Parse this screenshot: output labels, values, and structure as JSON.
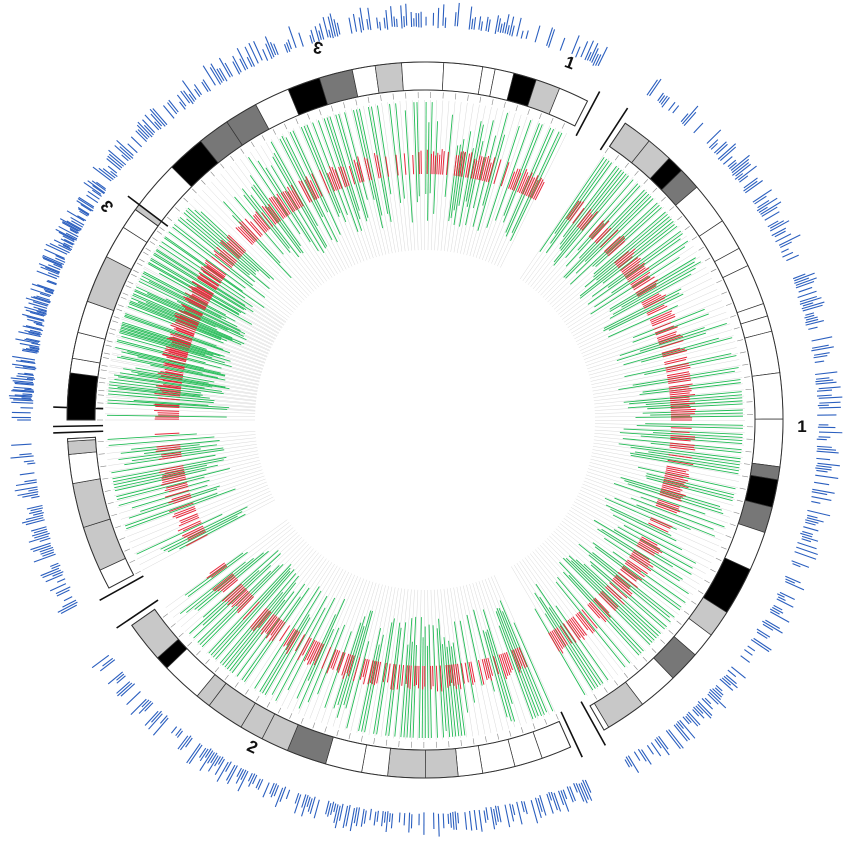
{
  "title": "",
  "chromosomes": [
    {
      "id": "chr1",
      "label": "1"
    },
    {
      "id": "chr2",
      "label": "2"
    },
    {
      "id": "chr3",
      "label": "3"
    }
  ],
  "extra_label": {
    "label": "3"
  },
  "colors": {
    "outer_features": "#2b5fbf",
    "feature_green": "#22bb55",
    "feature_red": "#e8283c",
    "band_black": "#000000",
    "band_dark": "#777777",
    "band_light": "#c8c8c8",
    "band_white": "#ffffff",
    "outline": "#333333",
    "grid": "#d9d9d9"
  },
  "tracks": [
    {
      "name": "cytoband-ideogram"
    },
    {
      "name": "outer-feature-density"
    },
    {
      "name": "green-feature-track"
    },
    {
      "name": "red-feature-track"
    }
  ]
}
